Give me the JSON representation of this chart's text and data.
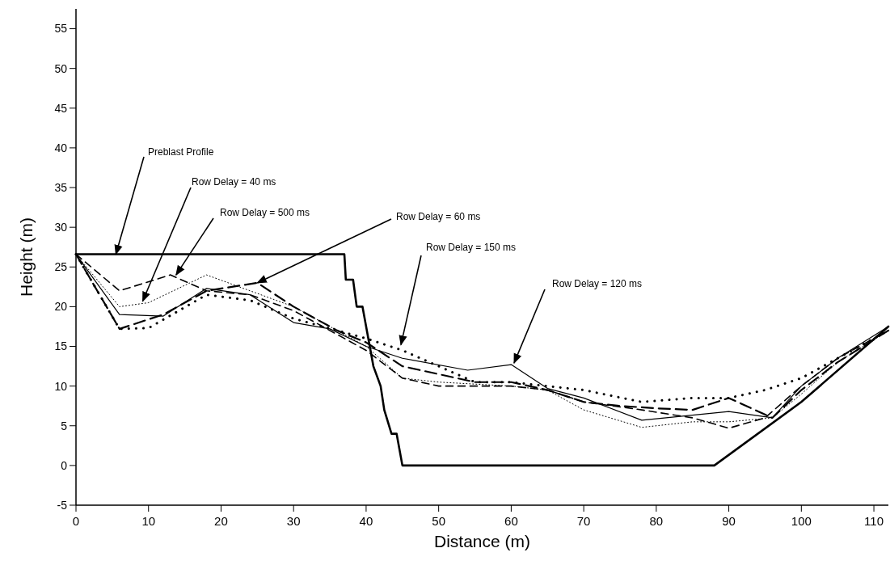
{
  "chart_data": {
    "type": "line",
    "xlabel": "Distance (m)",
    "ylabel": "Height (m)",
    "xlim": [
      0,
      112
    ],
    "ylim": [
      -5,
      57.5
    ],
    "xticks": [
      0,
      10,
      20,
      30,
      40,
      50,
      60,
      70,
      80,
      90,
      100,
      110
    ],
    "yticks": [
      -5,
      0,
      5,
      10,
      15,
      20,
      25,
      30,
      35,
      40,
      45,
      50,
      55
    ],
    "grid": false,
    "annotations": [
      {
        "text": "Preblast Profile",
        "x": 5.5,
        "y": 26.6
      },
      {
        "text": "Row Delay = 40 ms",
        "x": 9.2,
        "y": 20.7
      },
      {
        "text": "Row Delay = 500 ms",
        "x": 13.8,
        "y": 24
      },
      {
        "text": "Row Delay = 60 ms",
        "x": 25,
        "y": 23
      },
      {
        "text": "Row Delay = 150 ms",
        "x": 44.8,
        "y": 15.2
      },
      {
        "text": "Row Delay = 120 ms",
        "x": 60.4,
        "y": 12.9
      }
    ],
    "series": [
      {
        "color": "#000000",
        "line_style": "solid",
        "x": [
          0,
          37,
          37.2,
          38.2,
          38.7,
          39.5,
          40.5,
          41,
          42,
          42.5,
          43.5,
          44.2,
          45,
          88,
          100,
          112
        ],
        "values": [
          26.6,
          26.6,
          23.4,
          23.4,
          20,
          20,
          15,
          12.5,
          10,
          7,
          4,
          4,
          0,
          0,
          8,
          17.5
        ]
      },
      {
        "color": "#000000",
        "line_style": "dotted",
        "x": [
          0,
          6,
          10,
          18,
          24,
          30,
          36,
          40,
          45,
          50,
          60,
          65,
          70,
          78,
          85,
          90,
          96,
          100,
          105,
          112
        ],
        "values": [
          26.6,
          20,
          20.5,
          24,
          22,
          20,
          17,
          15,
          11,
          10.5,
          10,
          9.5,
          7,
          4.8,
          5.5,
          5.5,
          6,
          9,
          13,
          17
        ]
      },
      {
        "color": "#000000",
        "line_style": "dashed",
        "x": [
          0,
          6,
          13,
          18,
          24,
          30,
          36,
          40,
          45,
          50,
          60,
          65,
          70,
          78,
          85,
          90,
          95,
          100,
          105,
          112
        ],
        "values": [
          26.6,
          22,
          24,
          22,
          21.5,
          19.5,
          16.5,
          14.5,
          11,
          10,
          10,
          9.5,
          8,
          7,
          6,
          4.7,
          6,
          10,
          13.5,
          17
        ]
      },
      {
        "color": "#000000",
        "line_style": "dashed",
        "x": [
          0,
          6,
          12,
          18,
          25,
          30,
          36,
          40,
          45,
          50,
          55,
          60,
          65,
          70,
          75,
          80,
          85,
          90,
          96,
          100,
          105,
          112
        ],
        "values": [
          26.6,
          17.2,
          19,
          22,
          23,
          20,
          17,
          15.5,
          12.5,
          11.5,
          10.5,
          10.5,
          9.5,
          8,
          7.5,
          7.2,
          7,
          8.5,
          6,
          9.5,
          13,
          17
        ]
      },
      {
        "color": "#000000",
        "line_style": "dotted",
        "x": [
          0,
          6,
          10,
          18,
          24,
          30,
          36,
          40,
          45,
          50,
          55,
          60,
          65,
          70,
          78,
          85,
          90,
          95,
          100,
          105,
          112
        ],
        "values": [
          26.6,
          17.2,
          17.3,
          21.5,
          20.8,
          18.5,
          17,
          16,
          14.5,
          12.5,
          10.5,
          10.5,
          10,
          9.5,
          8,
          8.5,
          8.5,
          9.5,
          11,
          13.5,
          17
        ]
      },
      {
        "color": "#000000",
        "line_style": "solid",
        "x": [
          0,
          6,
          12,
          18,
          24,
          30,
          35,
          40,
          45,
          54,
          60,
          65,
          70,
          78,
          90,
          96,
          100,
          105,
          112
        ],
        "values": [
          26.6,
          19,
          18.8,
          22.3,
          21.5,
          18,
          17.2,
          15,
          13.5,
          12,
          12.7,
          9.7,
          8.5,
          5.7,
          6.8,
          6,
          10,
          13.5,
          17.5
        ]
      }
    ]
  }
}
